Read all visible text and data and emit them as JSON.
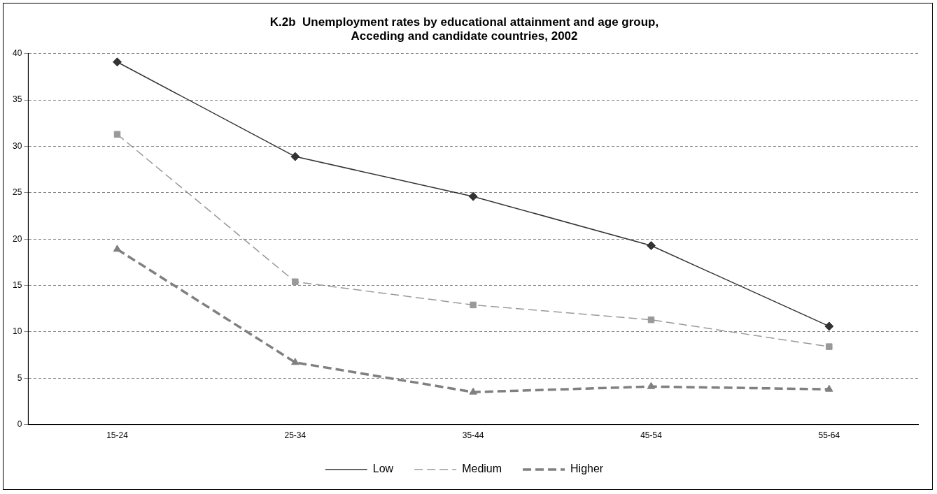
{
  "chart_data": {
    "type": "line",
    "title": "K.2b  Unemployment rates by educational attainment and age group,\nAcceding and candidate countries, 2002",
    "categories": [
      "15-24",
      "25-34",
      "35-44",
      "45-54",
      "55-64"
    ],
    "series": [
      {
        "name": "Low",
        "color": "#333333",
        "marker": "diamond",
        "line_style": "solid",
        "values": [
          39.1,
          28.9,
          24.6,
          19.3,
          10.6
        ]
      },
      {
        "name": "Medium",
        "color": "#999999",
        "marker": "square",
        "line_style": "dashed",
        "values": [
          31.3,
          15.4,
          12.9,
          11.3,
          8.4
        ]
      },
      {
        "name": "Higher",
        "color": "#808080",
        "marker": "triangle",
        "line_style": "dashed",
        "values": [
          18.9,
          6.7,
          3.5,
          4.1,
          3.8
        ]
      }
    ],
    "ylim": [
      0,
      40
    ],
    "yticks": [
      0,
      5,
      10,
      15,
      20,
      25,
      30,
      35,
      40
    ],
    "grid": "y",
    "legend": "bottom"
  }
}
